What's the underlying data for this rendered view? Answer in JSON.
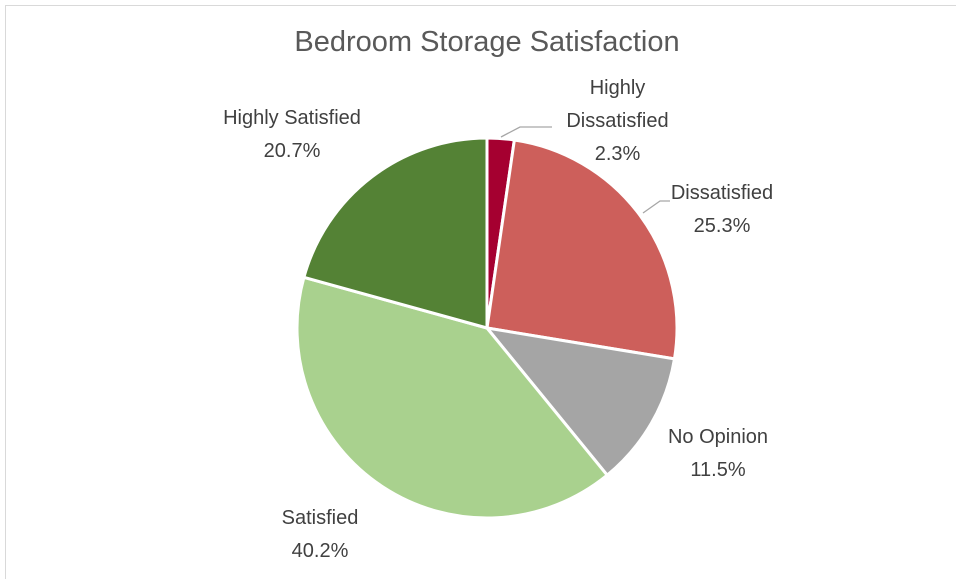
{
  "chart_data": {
    "type": "pie",
    "title": "Bedroom Storage Satisfaction",
    "categories": [
      "Highly Dissatisfied",
      "Dissatisfied",
      "No Opinion",
      "Satisfied",
      "Highly Satisfied"
    ],
    "values": [
      2.3,
      25.3,
      11.5,
      40.2,
      20.7
    ],
    "value_labels": [
      "2.3%",
      "25.3%",
      "11.5%",
      "40.2%",
      "20.7%"
    ],
    "colors": [
      "#a50030",
      "#cd5f5b",
      "#a5a5a5",
      "#a9d18e",
      "#548235"
    ]
  }
}
